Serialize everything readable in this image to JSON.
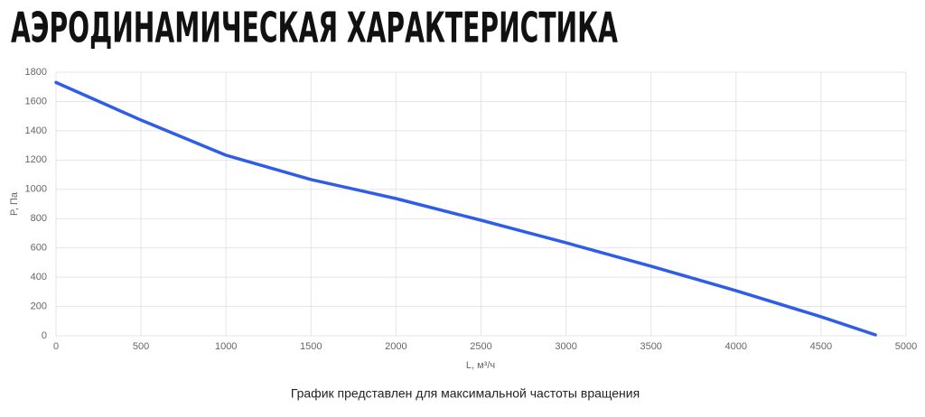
{
  "chart_data": {
    "type": "line",
    "title": "АЭРОДИНАМИЧЕСКАЯ ХАРАКТЕРИСТИКА",
    "x_label": "L, м³/ч",
    "y_label": "P, Па",
    "caption": "График представлен для максимальной частоты вращения",
    "x": [
      0,
      500,
      1000,
      1500,
      2000,
      2500,
      3000,
      3500,
      4000,
      4500,
      4820
    ],
    "series": [
      {
        "color": "#2f5de8",
        "values": [
          1730,
          1473,
          1233,
          1067,
          937,
          789,
          635,
          475,
          308,
          130,
          6
        ]
      }
    ],
    "xlim": [
      0,
      5000
    ],
    "xticks": [
      0,
      500,
      1000,
      1500,
      2000,
      2500,
      3000,
      3500,
      4000,
      4500,
      5000
    ],
    "ylim": [
      0,
      1800
    ],
    "yticks": [
      0,
      200,
      400,
      600,
      800,
      1000,
      1200,
      1400,
      1600,
      1800
    ],
    "grid": true
  }
}
